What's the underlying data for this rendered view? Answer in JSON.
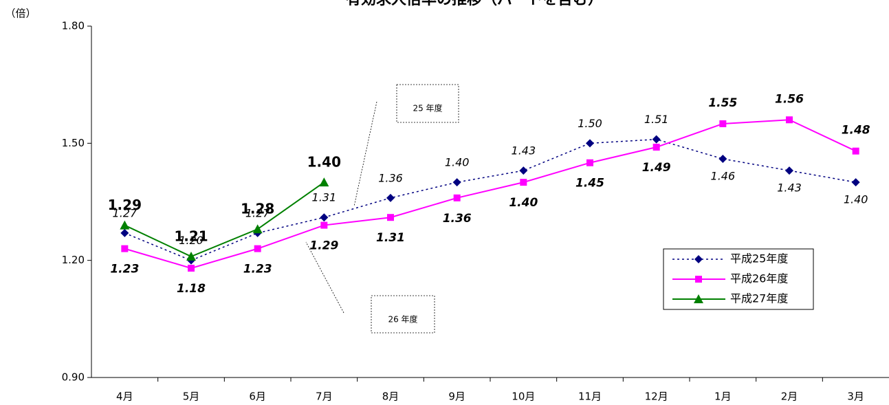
{
  "chart_data": {
    "type": "line",
    "title": "有効求人倍率の推移（パートを含む）",
    "y_label": "（倍）",
    "categories": [
      "4月",
      "5月",
      "6月",
      "7月",
      "8月",
      "9月",
      "10月",
      "11月",
      "12月",
      "1月",
      "2月",
      "3月"
    ],
    "series": [
      {
        "name": "平成25年度",
        "color": "#000080",
        "marker": "diamond",
        "dash": true,
        "values": [
          1.27,
          1.2,
          1.27,
          1.31,
          1.36,
          1.4,
          1.43,
          1.5,
          1.51,
          1.46,
          1.43,
          1.4
        ],
        "value_labels": [
          "1.27",
          "1.20",
          "1.27",
          "1.31",
          "1.36",
          "1.40",
          "1.43",
          "1.50",
          "1.51",
          "1.46",
          "1.43",
          "1.40"
        ]
      },
      {
        "name": "平成26年度",
        "color": "#ff00ff",
        "marker": "square",
        "dash": false,
        "values": [
          1.23,
          1.18,
          1.23,
          1.29,
          1.31,
          1.36,
          1.4,
          1.45,
          1.49,
          1.55,
          1.56,
          1.48
        ],
        "value_labels": [
          "1.23",
          "1.18",
          "1.23",
          "1.29",
          "1.31",
          "1.36",
          "1.40",
          "1.45",
          "1.49",
          "1.55",
          "1.56",
          "1.48"
        ]
      },
      {
        "name": "平成27年度",
        "color": "#008000",
        "marker": "triangle",
        "dash": false,
        "values": [
          1.29,
          1.21,
          1.28,
          1.4,
          null,
          null,
          null,
          null,
          null,
          null,
          null,
          null
        ],
        "value_labels": [
          "1.29",
          "1.21",
          "1.28",
          "1.40",
          null,
          null,
          null,
          null,
          null,
          null,
          null,
          null
        ]
      }
    ],
    "ylim": [
      0.9,
      1.8
    ],
    "yticks": [
      {
        "value": 0.9,
        "label": "0.90"
      },
      {
        "value": 1.2,
        "label": "1.20"
      },
      {
        "value": 1.5,
        "label": "1.50"
      },
      {
        "value": 1.8,
        "label": "1.80"
      }
    ],
    "annotations": [
      "25 年度",
      "26 年度"
    ]
  }
}
